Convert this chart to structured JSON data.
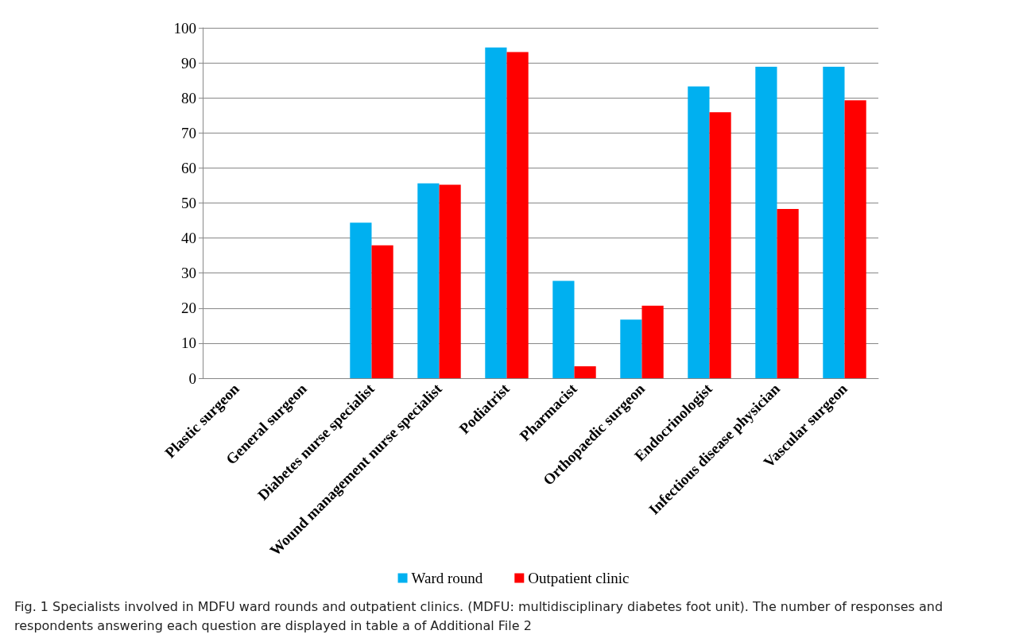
{
  "chart_data": {
    "type": "bar",
    "categories": [
      "Plastic surgeon",
      "General surgeon",
      "Diabetes nurse specialist",
      "Wound management nurse specialist",
      "Podiatrist",
      "Pharmacist",
      "Orthopaedic surgeon",
      "Endocrinologist",
      "Infectious disease physician",
      "Vascular surgeon"
    ],
    "series": [
      {
        "name": "Ward round",
        "color": "#00b0f0",
        "values": [
          0,
          0,
          44.4,
          55.6,
          94.4,
          27.8,
          16.7,
          83.3,
          88.9,
          88.9
        ]
      },
      {
        "name": "Outpatient clinic",
        "color": "#ff0000",
        "values": [
          0,
          0,
          37.9,
          55.2,
          93.1,
          3.4,
          20.7,
          75.9,
          48.3,
          79.3
        ]
      }
    ],
    "ylim": [
      0,
      100
    ],
    "yticks": [
      0,
      10,
      20,
      30,
      40,
      50,
      60,
      70,
      80,
      90,
      100
    ],
    "grid": "y",
    "legend": "bottom",
    "annotations": [
      "Fig. 1 Specialists involved in MDFU ward rounds and outpatient clinics. (MDFU: multidisciplinary diabetes foot unit). The number of responses and respondents answering each question are displayed in table a of Additional File 2"
    ]
  }
}
